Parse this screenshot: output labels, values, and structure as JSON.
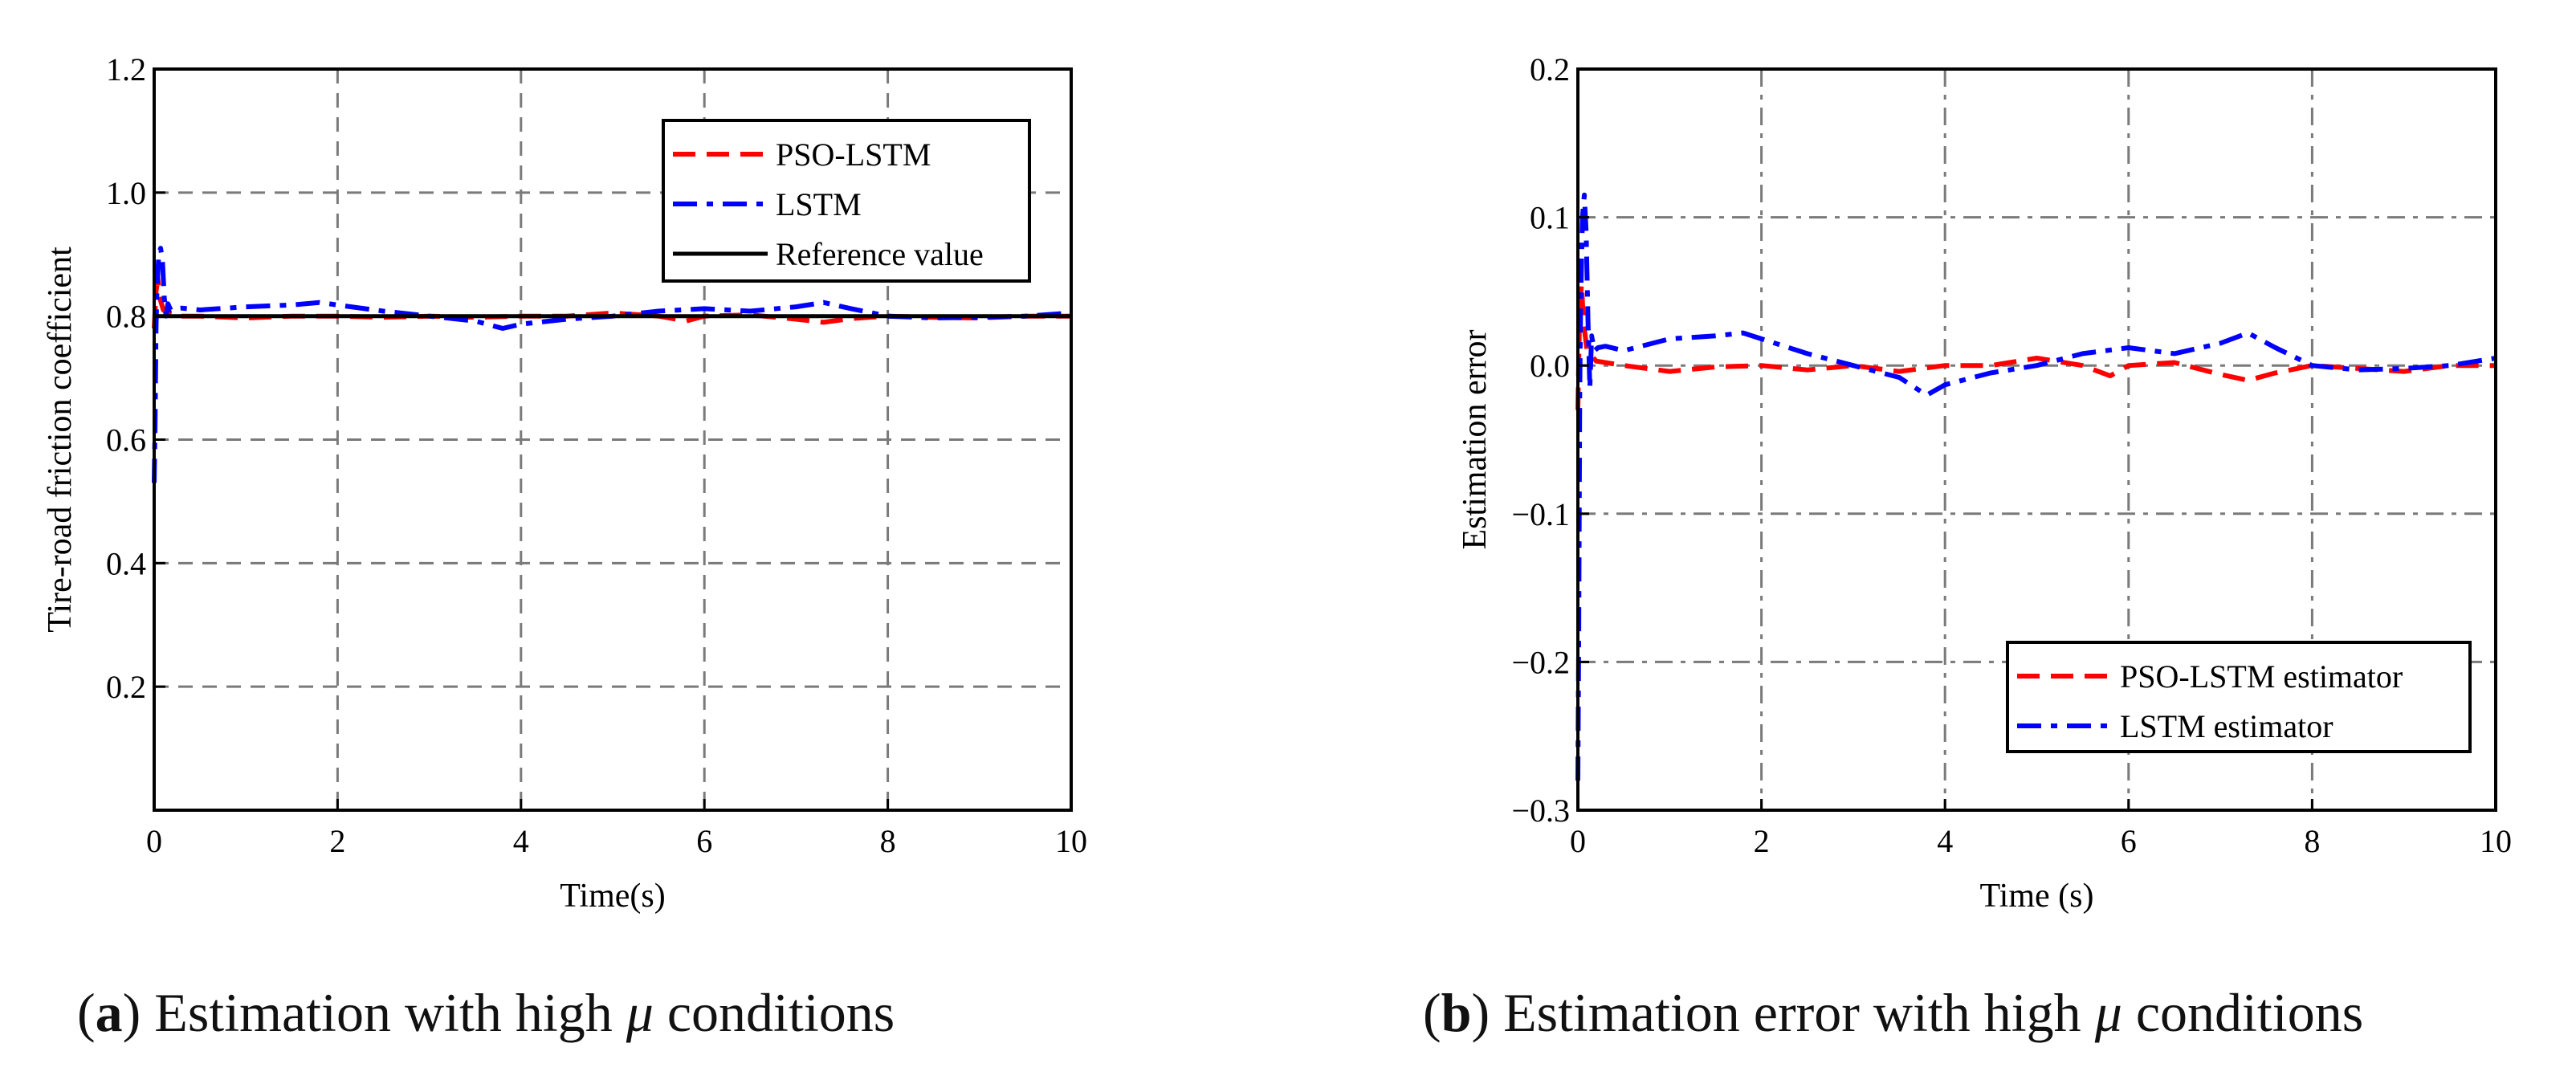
{
  "chart_data": [
    {
      "type": "line",
      "panel_label": "a",
      "caption_text": "Estimation with high",
      "caption_symbol": "μ",
      "caption_tail": "conditions",
      "xlabel": "Time(s)",
      "ylabel": "Tire-road friction coefficient",
      "xlim": [
        0,
        10
      ],
      "ylim": [
        0,
        1.2
      ],
      "xticks": [
        0,
        2,
        4,
        6,
        8,
        10
      ],
      "xtick_labels": [
        "0",
        "2",
        "4",
        "6",
        "8",
        "10"
      ],
      "yticks": [
        0.2,
        0.4,
        0.6,
        0.8,
        1.0,
        1.2
      ],
      "ytick_labels": [
        "0.2",
        "0.4",
        "0.6",
        "0.8",
        "1.0",
        "1.2"
      ],
      "grid": true,
      "legend_position": "top-right",
      "series": [
        {
          "name": "PSO-LSTM",
          "color": "#ff0000",
          "dash": "dash",
          "x": [
            0,
            0.02,
            0.04,
            0.06,
            0.1,
            0.2,
            0.5,
            1.0,
            1.5,
            2.0,
            2.5,
            3.0,
            3.5,
            4.0,
            4.5,
            5.0,
            5.5,
            5.8,
            6.0,
            6.5,
            7.0,
            7.3,
            7.6,
            8.0,
            8.5,
            9.0,
            9.5,
            10.0
          ],
          "y": [
            0.78,
            0.84,
            0.86,
            0.83,
            0.81,
            0.8,
            0.8,
            0.797,
            0.8,
            0.8,
            0.798,
            0.8,
            0.798,
            0.8,
            0.8,
            0.805,
            0.8,
            0.792,
            0.8,
            0.802,
            0.795,
            0.79,
            0.796,
            0.8,
            0.798,
            0.797,
            0.8,
            0.8
          ]
        },
        {
          "name": "LSTM",
          "color": "#0000ff",
          "dash": "dashdot",
          "x": [
            0,
            0.01,
            0.02,
            0.03,
            0.05,
            0.07,
            0.09,
            0.11,
            0.13,
            0.15,
            0.18,
            0.22,
            0.3,
            0.5,
            1.0,
            1.5,
            1.8,
            2.0,
            2.5,
            3.0,
            3.5,
            3.8,
            4.0,
            4.5,
            5.0,
            5.5,
            6.0,
            6.5,
            7.0,
            7.3,
            7.6,
            8.0,
            8.5,
            9.0,
            9.5,
            10.0
          ],
          "y": [
            0.53,
            0.62,
            0.78,
            0.84,
            0.9,
            0.91,
            0.89,
            0.83,
            0.8,
            0.82,
            0.81,
            0.812,
            0.813,
            0.81,
            0.815,
            0.818,
            0.822,
            0.818,
            0.808,
            0.8,
            0.792,
            0.78,
            0.787,
            0.795,
            0.8,
            0.808,
            0.812,
            0.808,
            0.815,
            0.822,
            0.812,
            0.8,
            0.797,
            0.798,
            0.8,
            0.805
          ]
        },
        {
          "name": "Reference value",
          "color": "#000000",
          "dash": "solid",
          "x": [
            0,
            10
          ],
          "y": [
            0.8,
            0.8
          ]
        }
      ]
    },
    {
      "type": "line",
      "panel_label": "b",
      "caption_text": "Estimation error with high",
      "caption_symbol": "μ",
      "caption_tail": "conditions",
      "xlabel": "Time (s)",
      "ylabel": "Estimation error",
      "xlim": [
        0,
        10
      ],
      "ylim": [
        -0.3,
        0.2
      ],
      "xticks": [
        0,
        2,
        4,
        6,
        8,
        10
      ],
      "xtick_labels": [
        "0",
        "2",
        "4",
        "6",
        "8",
        "10"
      ],
      "yticks": [
        -0.3,
        -0.2,
        -0.1,
        0.0,
        0.1,
        0.2
      ],
      "ytick_labels": [
        "−0.3",
        "−0.2",
        "−0.1",
        "0.0",
        "0.1",
        "0.2"
      ],
      "grid": true,
      "legend_position": "bottom-right",
      "series": [
        {
          "name": "PSO-LSTM estimator",
          "color": "#ff0000",
          "dash": "dash",
          "x": [
            0,
            0.02,
            0.04,
            0.06,
            0.1,
            0.2,
            0.5,
            1.0,
            1.5,
            2.0,
            2.5,
            3.0,
            3.5,
            4.0,
            4.5,
            5.0,
            5.5,
            5.8,
            6.0,
            6.5,
            7.0,
            7.3,
            7.6,
            8.0,
            8.5,
            9.0,
            9.5,
            10.0
          ],
          "y": [
            -0.03,
            0.04,
            0.055,
            0.03,
            0.01,
            0.003,
            0.0,
            -0.004,
            -0.001,
            0.0,
            -0.003,
            0.0,
            -0.004,
            0.0,
            0.0,
            0.005,
            0.0,
            -0.007,
            0.0,
            0.002,
            -0.006,
            -0.01,
            -0.005,
            0.0,
            -0.002,
            -0.004,
            0.0,
            0.0
          ]
        },
        {
          "name": "LSTM estimator",
          "color": "#0000ff",
          "dash": "dashdot",
          "x": [
            0,
            0.01,
            0.02,
            0.03,
            0.05,
            0.07,
            0.09,
            0.11,
            0.13,
            0.15,
            0.18,
            0.22,
            0.3,
            0.5,
            1.0,
            1.5,
            1.8,
            2.0,
            2.5,
            3.0,
            3.5,
            3.8,
            4.0,
            4.5,
            5.0,
            5.5,
            6.0,
            6.5,
            7.0,
            7.3,
            7.6,
            8.0,
            8.5,
            9.0,
            9.5,
            10.0
          ],
          "y": [
            -0.28,
            -0.18,
            -0.02,
            0.04,
            0.1,
            0.115,
            0.09,
            0.03,
            -0.015,
            0.02,
            0.01,
            0.012,
            0.013,
            0.01,
            0.018,
            0.02,
            0.022,
            0.018,
            0.008,
            0.0,
            -0.008,
            -0.02,
            -0.013,
            -0.005,
            0.0,
            0.008,
            0.012,
            0.008,
            0.015,
            0.022,
            0.012,
            0.0,
            -0.003,
            -0.002,
            0.0,
            0.005
          ]
        }
      ]
    }
  ]
}
